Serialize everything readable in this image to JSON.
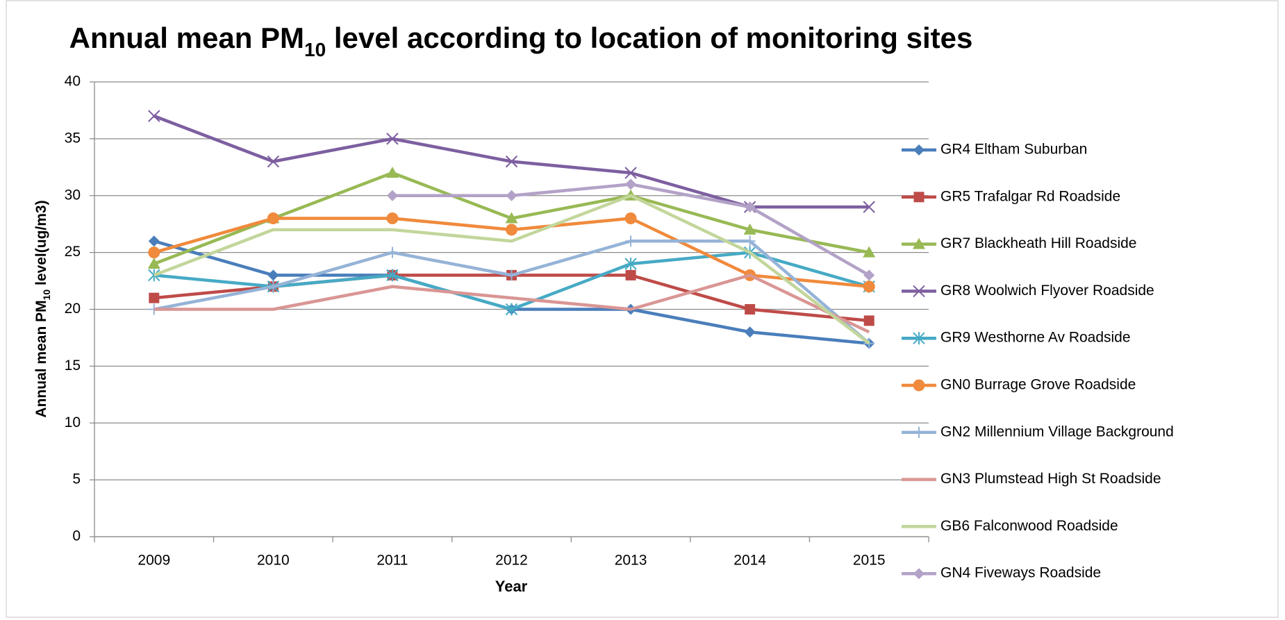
{
  "chart_data": {
    "type": "line",
    "title": [
      "Annual mean PM",
      "10",
      " level according to location of monitoring sites"
    ],
    "y_label": [
      "Annual mean PM",
      "10",
      " level(ug/m3)"
    ],
    "x_label": "Year",
    "categories": [
      "2009",
      "2010",
      "2011",
      "2012",
      "2013",
      "2014",
      "2015"
    ],
    "ylim": [
      0,
      40
    ],
    "yticks": [
      0,
      5,
      10,
      15,
      20,
      25,
      30,
      35,
      40
    ],
    "grid": true,
    "legend": "right",
    "series": [
      {
        "name": "GR4 Eltham Suburban",
        "color": "#4a7ebb",
        "marker": "diamond",
        "values": [
          26,
          23,
          23,
          20,
          20,
          18,
          17
        ]
      },
      {
        "name": "GR5 Trafalgar Rd Roadside",
        "color": "#be4b48",
        "marker": "square",
        "values": [
          21,
          22,
          23,
          23,
          23,
          20,
          19
        ]
      },
      {
        "name": "GR7 Blackheath Hill Roadside",
        "color": "#98b954",
        "marker": "triangle",
        "values": [
          24,
          28,
          32,
          28,
          30,
          27,
          25
        ]
      },
      {
        "name": "GR8 Woolwich Flyover Roadside",
        "color": "#7d5fa0",
        "marker": "x",
        "values": [
          37,
          33,
          35,
          33,
          32,
          29,
          29
        ]
      },
      {
        "name": "GR9  Westhorne Av Roadside",
        "color": "#46aac5",
        "marker": "star",
        "values": [
          23,
          22,
          23,
          20,
          24,
          25,
          22
        ]
      },
      {
        "name": "GN0 Burrage Grove Roadside",
        "color": "#f08a3c",
        "marker": "circle",
        "values": [
          25,
          28,
          28,
          27,
          28,
          23,
          22
        ]
      },
      {
        "name": "GN2 Millennium Village Background",
        "color": "#95b3d7",
        "marker": "plus",
        "values": [
          20,
          22,
          25,
          23,
          26,
          26,
          17
        ]
      },
      {
        "name": "GN3 Plumstead High St Roadside",
        "color": "#d99694",
        "marker": "none",
        "values": [
          20,
          20,
          22,
          21,
          20,
          23,
          18
        ]
      },
      {
        "name": "GB6 Falconwood Roadside",
        "color": "#c3d69b",
        "marker": "none",
        "values": [
          23,
          27,
          27,
          26,
          30,
          25,
          17
        ]
      },
      {
        "name": "GN4 Fiveways Roadside",
        "color": "#b3a2c7",
        "marker": "diamond",
        "values": [
          null,
          null,
          30,
          30,
          31,
          29,
          23
        ]
      }
    ]
  }
}
